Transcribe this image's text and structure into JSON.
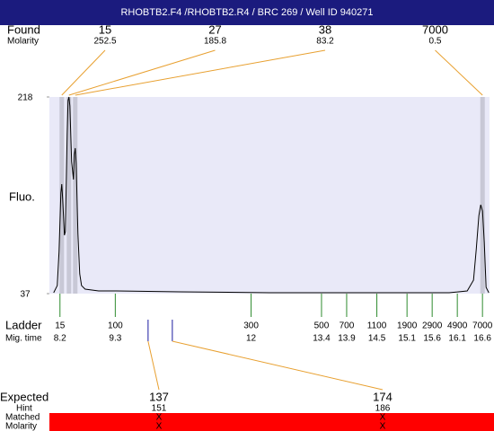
{
  "title": "RHOBTB2.F4 /RHOBTB2.R4 / BRC 269 / Well ID 940271",
  "found": {
    "label": "Found",
    "sublabel": "Molarity",
    "peaks": [
      {
        "size": 15,
        "molarity": 252.5,
        "time": 8.236
      },
      {
        "size": 27,
        "molarity": 185.8,
        "time": 8.379
      },
      {
        "size": 38,
        "molarity": 83.2,
        "time": 8.504
      },
      {
        "size": 7000,
        "molarity": 0.5,
        "time": 16.601
      }
    ]
  },
  "chart_data": {
    "type": "line",
    "ylabel": "Fluo.",
    "color": "#000000",
    "xlim": [
      7.99,
      16.74
    ],
    "ylim": [
      37,
      218
    ],
    "yticks": [
      37,
      218
    ],
    "x": [
      8.075,
      8.146,
      8.182,
      8.218,
      8.236,
      8.254,
      8.289,
      8.307,
      8.343,
      8.361,
      8.379,
      8.397,
      8.432,
      8.468,
      8.486,
      8.504,
      8.522,
      8.557,
      8.593,
      8.629,
      8.7,
      8.969,
      9.326,
      10.577,
      12.364,
      14.152,
      15.939,
      16.297,
      16.422,
      16.476,
      16.529,
      16.565,
      16.601,
      16.636,
      16.672,
      16.726
    ],
    "values": [
      37.8,
      44.4,
      75.8,
      129.6,
      137.8,
      123.8,
      90.7,
      94.0,
      183.3,
      214.7,
      218,
      209.7,
      158.5,
      142.0,
      165.1,
      170.9,
      156.8,
      92.4,
      55.2,
      44.4,
      41.1,
      39.5,
      39.5,
      38.7,
      37.8,
      37.8,
      37.8,
      39.5,
      49.4,
      77.5,
      108.9,
      118.8,
      113.0,
      84.1,
      42.8,
      37.8
    ]
  },
  "ladder": {
    "label": "Ladder",
    "sublabel": "Mig. time",
    "items": [
      {
        "size": 15,
        "time": 8.2
      },
      {
        "size": 100,
        "time": 9.3
      },
      {
        "size": 300,
        "time": 12
      },
      {
        "size": 500,
        "time": 13.4
      },
      {
        "size": 700,
        "time": 13.9
      },
      {
        "size": 1100,
        "time": 14.5
      },
      {
        "size": 1900,
        "time": 15.1
      },
      {
        "size": 2900,
        "time": 15.6
      },
      {
        "size": 4900,
        "time": 16.1
      },
      {
        "size": 7000,
        "time": 16.6
      }
    ]
  },
  "expected": {
    "label": "Expected",
    "hint_label": "Hint",
    "matched_label": "Matched",
    "molarity_label": "Molarity",
    "items": [
      {
        "size": 137,
        "hint": 151,
        "matched": "X",
        "molarity": "X",
        "time": 9.952
      },
      {
        "size": 174,
        "hint": 186,
        "matched": "X",
        "molarity": "X",
        "time": 10.434
      }
    ]
  }
}
